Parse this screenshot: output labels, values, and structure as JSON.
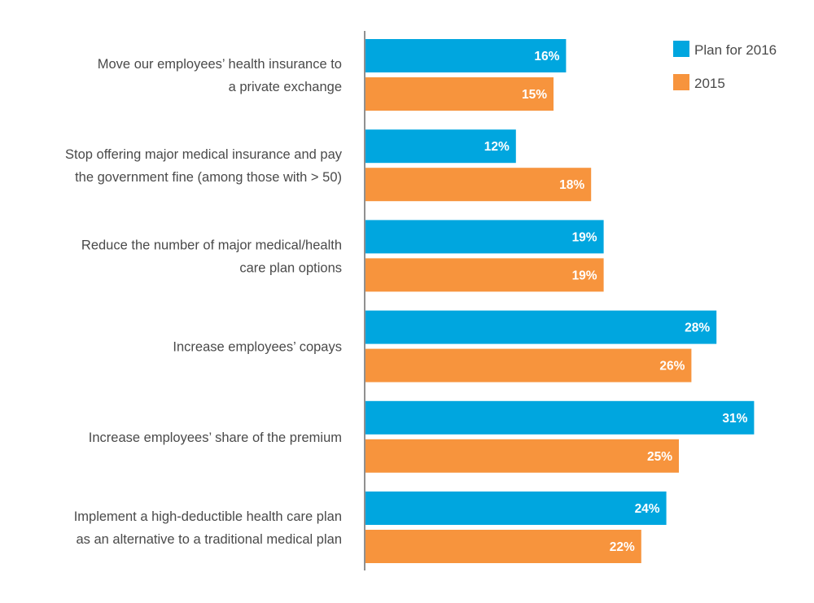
{
  "chart_data": {
    "type": "bar",
    "orientation": "horizontal",
    "title": "",
    "xlabel": "",
    "ylabel": "",
    "xlim": [
      0,
      32
    ],
    "grid": false,
    "legend_position": "top-right",
    "value_suffix": "%",
    "categories": [
      [
        "Move our employees’ health insurance to",
        "a private exchange"
      ],
      [
        "Stop offering major medical insurance and pay",
        "the government fine (among those with > 50)"
      ],
      [
        "Reduce the number of major medical/health",
        "care plan options"
      ],
      [
        "Increase employees’ copays"
      ],
      [
        "Increase employees’ share of the premium"
      ],
      [
        "Implement a high-deductible health care plan",
        "as an alternative to a traditional medical plan"
      ]
    ],
    "series": [
      {
        "name": "Plan for 2016",
        "color": "#00a6df",
        "values": [
          16,
          12,
          19,
          28,
          31,
          24
        ]
      },
      {
        "name": "2015",
        "color": "#f7943d",
        "values": [
          15,
          18,
          19,
          26,
          25,
          22
        ]
      }
    ]
  },
  "colors": {
    "axis": "#555555",
    "label_text": "#4a4a4a",
    "value_text": "#ffffff"
  }
}
